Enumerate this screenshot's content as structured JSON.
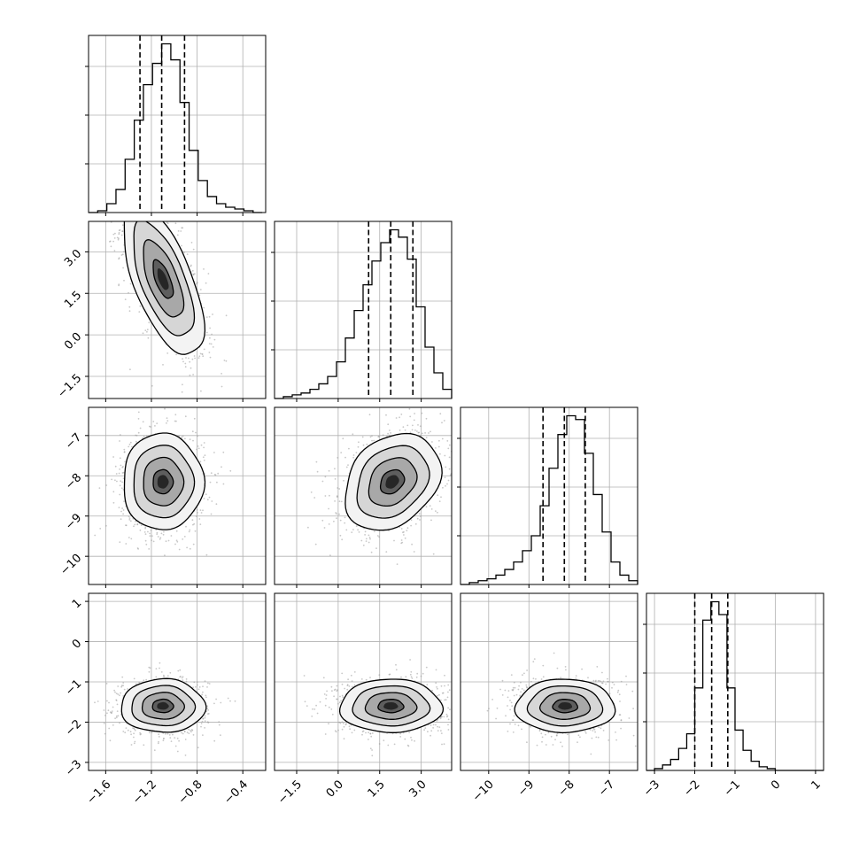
{
  "chart_data": {
    "type": "corner",
    "title": "",
    "parameter_labels": [
      "",
      "",
      "",
      ""
    ],
    "grid": true,
    "diagonal": [
      {
        "type": "histogram",
        "xlim": [
          -1.75,
          -0.2
        ],
        "quantiles": [
          -1.3,
          -1.11,
          -0.91
        ],
        "bin_edges": [
          -1.75,
          -1.67,
          -1.59,
          -1.51,
          -1.43,
          -1.35,
          -1.27,
          -1.19,
          -1.11,
          -1.03,
          -0.95,
          -0.87,
          -0.79,
          -0.71,
          -0.63,
          -0.55,
          -0.47,
          -0.39,
          -0.31,
          -0.23
        ],
        "counts": [
          0,
          1,
          5,
          13,
          30,
          52,
          72,
          84,
          95,
          86,
          62,
          35,
          18,
          9,
          5,
          3,
          2,
          1,
          0
        ]
      },
      {
        "type": "histogram",
        "xlim": [
          -2.3,
          4.1
        ],
        "quantiles": [
          1.1,
          1.9,
          2.7
        ],
        "bin_edges": [
          -2.3,
          -1.98,
          -1.66,
          -1.34,
          -1.02,
          -0.7,
          -0.38,
          -0.06,
          0.26,
          0.58,
          0.9,
          1.22,
          1.54,
          1.86,
          2.18,
          2.5,
          2.82,
          3.14,
          3.46,
          3.78,
          4.1
        ],
        "counts": [
          0,
          1,
          2,
          3,
          5,
          8,
          12,
          20,
          33,
          48,
          62,
          75,
          85,
          92,
          88,
          76,
          50,
          28,
          14,
          5
        ]
      },
      {
        "type": "histogram",
        "xlim": [
          -10.7,
          -6.3
        ],
        "quantiles": [
          -8.65,
          -8.12,
          -7.6
        ],
        "bin_edges": [
          -10.7,
          -10.48,
          -10.26,
          -10.04,
          -9.82,
          -9.6,
          -9.38,
          -9.16,
          -8.94,
          -8.72,
          -8.5,
          -8.28,
          -8.06,
          -7.84,
          -7.62,
          -7.4,
          -7.18,
          -6.96,
          -6.74,
          -6.52,
          -6.3
        ],
        "counts": [
          0,
          1,
          2,
          3,
          5,
          8,
          12,
          18,
          26,
          42,
          62,
          80,
          90,
          88,
          70,
          48,
          28,
          12,
          5,
          2
        ]
      },
      {
        "type": "histogram",
        "xlim": [
          -3.2,
          1.2
        ],
        "quantiles": [
          -2.0,
          -1.58,
          -1.18
        ],
        "bin_edges": [
          -3.2,
          -3.0,
          -2.8,
          -2.6,
          -2.4,
          -2.2,
          -2.0,
          -1.8,
          -1.6,
          -1.4,
          -1.2,
          -1.0,
          -0.8,
          -0.6,
          -0.4,
          -0.2,
          0.0,
          0.2,
          0.4,
          0.6,
          0.8,
          1.0,
          1.2
        ],
        "counts": [
          0,
          1,
          3,
          6,
          12,
          20,
          45,
          82,
          92,
          85,
          45,
          22,
          11,
          5,
          2,
          1,
          0,
          0,
          0,
          0,
          0,
          0
        ]
      }
    ],
    "joint": [
      {
        "row": 1,
        "col": 0,
        "center": [
          -1.1,
          2.0
        ],
        "cov": [
          [
            0.031,
            -0.156
          ],
          [
            -0.156,
            1.92
          ]
        ],
        "ylim": [
          -2.1,
          4.2
        ]
      },
      {
        "row": 2,
        "col": 0,
        "center": [
          -1.1,
          -8.15
        ],
        "cov": [
          [
            0.031,
            0.0
          ],
          [
            0.0,
            0.36
          ]
        ],
        "ylim": [
          -10.7,
          -6.3
        ]
      },
      {
        "row": 2,
        "col": 1,
        "center": [
          1.95,
          -8.15
        ],
        "cov": [
          [
            0.75,
            0.14
          ],
          [
            0.14,
            0.36
          ]
        ]
      },
      {
        "row": 3,
        "col": 0,
        "center": [
          -1.1,
          -1.6
        ],
        "cov": [
          [
            0.034,
            0.0
          ],
          [
            0.0,
            0.11
          ]
        ],
        "ylim": [
          -3.2,
          1.2
        ]
      },
      {
        "row": 3,
        "col": 1,
        "center": [
          1.9,
          -1.6
        ],
        "cov": [
          [
            0.85,
            0.0
          ],
          [
            0.0,
            0.11
          ]
        ]
      },
      {
        "row": 3,
        "col": 2,
        "center": [
          -8.1,
          -1.6
        ],
        "cov": [
          [
            0.38,
            0.0
          ],
          [
            0.0,
            0.11
          ]
        ]
      }
    ],
    "x_ticks": [
      {
        "values": [
          -1.6,
          -1.2,
          -0.8,
          -0.4
        ],
        "labels": [
          "−1.6",
          "−1.2",
          "−0.8",
          "−0.4"
        ]
      },
      {
        "values": [
          -1.5,
          0.0,
          1.5,
          3.0
        ],
        "labels": [
          "−1.5",
          "0.0",
          "1.5",
          "3.0"
        ]
      },
      {
        "values": [
          -10,
          -9,
          -8,
          -7
        ],
        "labels": [
          "−10",
          "−9",
          "−8",
          "−7"
        ]
      },
      {
        "values": [
          -3,
          -2,
          -1,
          0,
          1
        ],
        "labels": [
          "−3",
          "−2",
          "−1",
          "0",
          "1"
        ]
      }
    ],
    "y_ticks": [
      null,
      {
        "values": [
          -1.5,
          0.0,
          1.5,
          3.0
        ],
        "labels": [
          "−1.5",
          "0.0",
          "1.5",
          "3.0"
        ]
      },
      {
        "values": [
          -10,
          -9,
          -8,
          -7
        ],
        "labels": [
          "−10",
          "−9",
          "−8",
          "−7"
        ]
      },
      {
        "values": [
          -3,
          -2,
          -1,
          0,
          1
        ],
        "labels": [
          "−3",
          "−2",
          "−1",
          "0",
          "1"
        ]
      }
    ],
    "contour_levels_sigma": [
      0.5,
      1.0,
      1.5,
      2.0
    ],
    "colors": {
      "line": "#000000",
      "grid": "#b0b0b0",
      "scatter": "#9a9a9a"
    }
  }
}
